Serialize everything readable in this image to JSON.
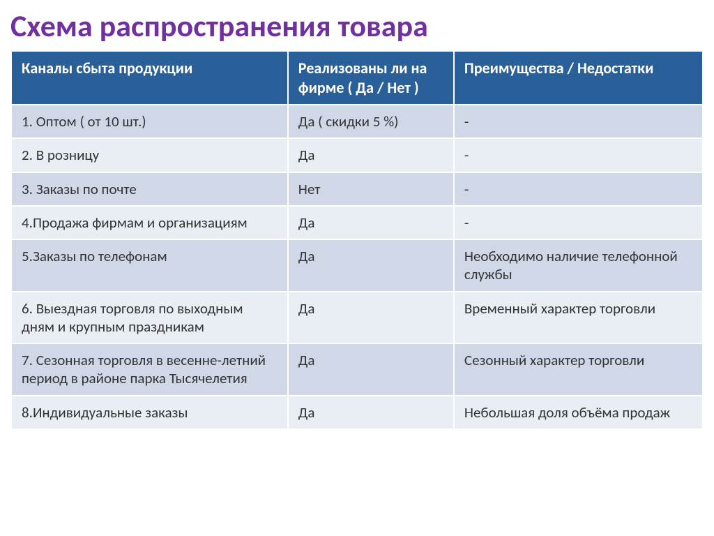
{
  "title": {
    "text": "Схема распространения товара",
    "color": "#7030a0"
  },
  "table": {
    "header_bg": "#2a6099",
    "header_text_color": "#ffffff",
    "row_odd_bg": "#d0d8e8",
    "row_even_bg": "#e9edf4",
    "text_color": "#333333",
    "columns": [
      "Каналы сбыта продукции",
      "Реализованы ли на фирме       ( Да / Нет )",
      "Преимущества / Недостатки"
    ],
    "rows": [
      {
        "c1": "1. Оптом ( от 10 шт.)",
        "c2": "Да ( скидки 5 %)",
        "c3": "-"
      },
      {
        "c1": "2.  В розницу",
        "c2": "Да",
        "c3": "-"
      },
      {
        "c1": "3. Заказы по почте",
        "c2": "Нет",
        "c3": "-"
      },
      {
        "c1": "4.Продажа фирмам и организациям",
        "c2": "Да",
        "c3": "-"
      },
      {
        "c1": "5.Заказы по телефонам",
        "c2": "Да",
        "c3": "Необходимо наличие телефонной службы"
      },
      {
        "c1": "6. Выездная торговля по выходным дням и крупным праздникам",
        "c2": "Да",
        "c3": "Временный характер торговли"
      },
      {
        "c1": "7. Сезонная торговля  в весенне-летний период в районе парка Тысячелетия",
        "c2": "Да",
        "c3": "Сезонный характер торговли"
      },
      {
        "c1": "8.Индивидуальные заказы",
        "c2": "Да",
        "c3": "Небольшая доля  объёма продаж"
      }
    ],
    "col_widths": [
      "40%",
      "24%",
      "36%"
    ]
  }
}
